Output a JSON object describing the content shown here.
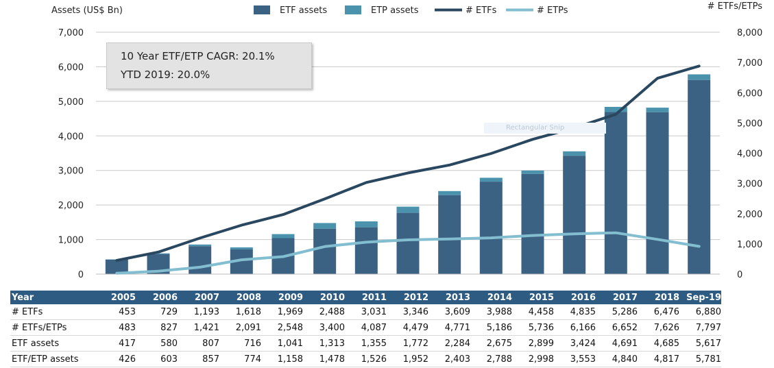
{
  "chart_data": {
    "type": "bar",
    "categories": [
      "2005",
      "2006",
      "2007",
      "2008",
      "2009",
      "2010",
      "2011",
      "2012",
      "2013",
      "2014",
      "2015",
      "2016",
      "2017",
      "2018",
      "Sep-19"
    ],
    "series": [
      {
        "name": "ETF assets",
        "kind": "bar",
        "axis": "left",
        "color": "#3c6283",
        "values": [
          417,
          580,
          807,
          716,
          1041,
          1313,
          1355,
          1772,
          2284,
          2675,
          2899,
          3424,
          4691,
          4685,
          5617
        ]
      },
      {
        "name": "ETP assets",
        "kind": "bar-stack-total",
        "axis": "left",
        "color": "#4b93ad",
        "values": [
          426,
          603,
          857,
          774,
          1158,
          1478,
          1526,
          1952,
          2403,
          2788,
          2998,
          3553,
          4840,
          4817,
          5781
        ]
      },
      {
        "name": "# ETFs",
        "kind": "line",
        "axis": "right",
        "color": "#2a4760",
        "values": [
          453,
          729,
          1193,
          1618,
          1969,
          2488,
          3031,
          3346,
          3609,
          3988,
          4458,
          4835,
          5286,
          6476,
          6880
        ]
      },
      {
        "name": "# ETPs",
        "kind": "line",
        "axis": "right",
        "color": "#82bdd0",
        "values": [
          30,
          98,
          228,
          473,
          579,
          912,
          1056,
          1133,
          1162,
          1198,
          1278,
          1331,
          1366,
          1150,
          917
        ]
      }
    ],
    "ylabel": "Assets (US$ Bn)",
    "y2label": "# ETFs/ETPs",
    "ylim": [
      0,
      7000
    ],
    "y2lim": [
      0,
      8000
    ],
    "yticks": [
      "0",
      "1,000",
      "2,000",
      "3,000",
      "4,000",
      "5,000",
      "6,000",
      "7,000"
    ],
    "y2ticks": [
      "0",
      "1,000",
      "2,000",
      "3,000",
      "4,000",
      "5,000",
      "6,000",
      "7,000",
      "8,000"
    ],
    "grid": true,
    "legend_position": "top"
  },
  "legend": [
    "ETF assets",
    "ETP assets",
    "# ETFs",
    "# ETPs"
  ],
  "annotation": {
    "line1": "10 Year ETF/ETP CAGR: 20.1%",
    "line2": "YTD 2019: 20.0%"
  },
  "watermark": "Rectangular Snip",
  "table": {
    "header": [
      "Year",
      "2005",
      "2006",
      "2007",
      "2008",
      "2009",
      "2010",
      "2011",
      "2012",
      "2013",
      "2014",
      "2015",
      "2016",
      "2017",
      "2018",
      "Sep-19"
    ],
    "rows": [
      [
        "# ETFs",
        "453",
        "729",
        "1,193",
        "1,618",
        "1,969",
        "2,488",
        "3,031",
        "3,346",
        "3,609",
        "3,988",
        "4,458",
        "4,835",
        "5,286",
        "6,476",
        "6,880"
      ],
      [
        "# ETFs/ETPs",
        "483",
        "827",
        "1,421",
        "2,091",
        "2,548",
        "3,400",
        "4,087",
        "4,479",
        "4,771",
        "5,186",
        "5,736",
        "6,166",
        "6,652",
        "7,626",
        "7,797"
      ],
      [
        "ETF assets",
        "417",
        "580",
        "807",
        "716",
        "1,041",
        "1,313",
        "1,355",
        "1,772",
        "2,284",
        "2,675",
        "2,899",
        "3,424",
        "4,691",
        "4,685",
        "5,617"
      ],
      [
        "ETF/ETP assets",
        "426",
        "603",
        "857",
        "774",
        "1,158",
        "1,478",
        "1,526",
        "1,952",
        "2,403",
        "2,788",
        "2,998",
        "3,553",
        "4,840",
        "4,817",
        "5,781"
      ]
    ]
  }
}
